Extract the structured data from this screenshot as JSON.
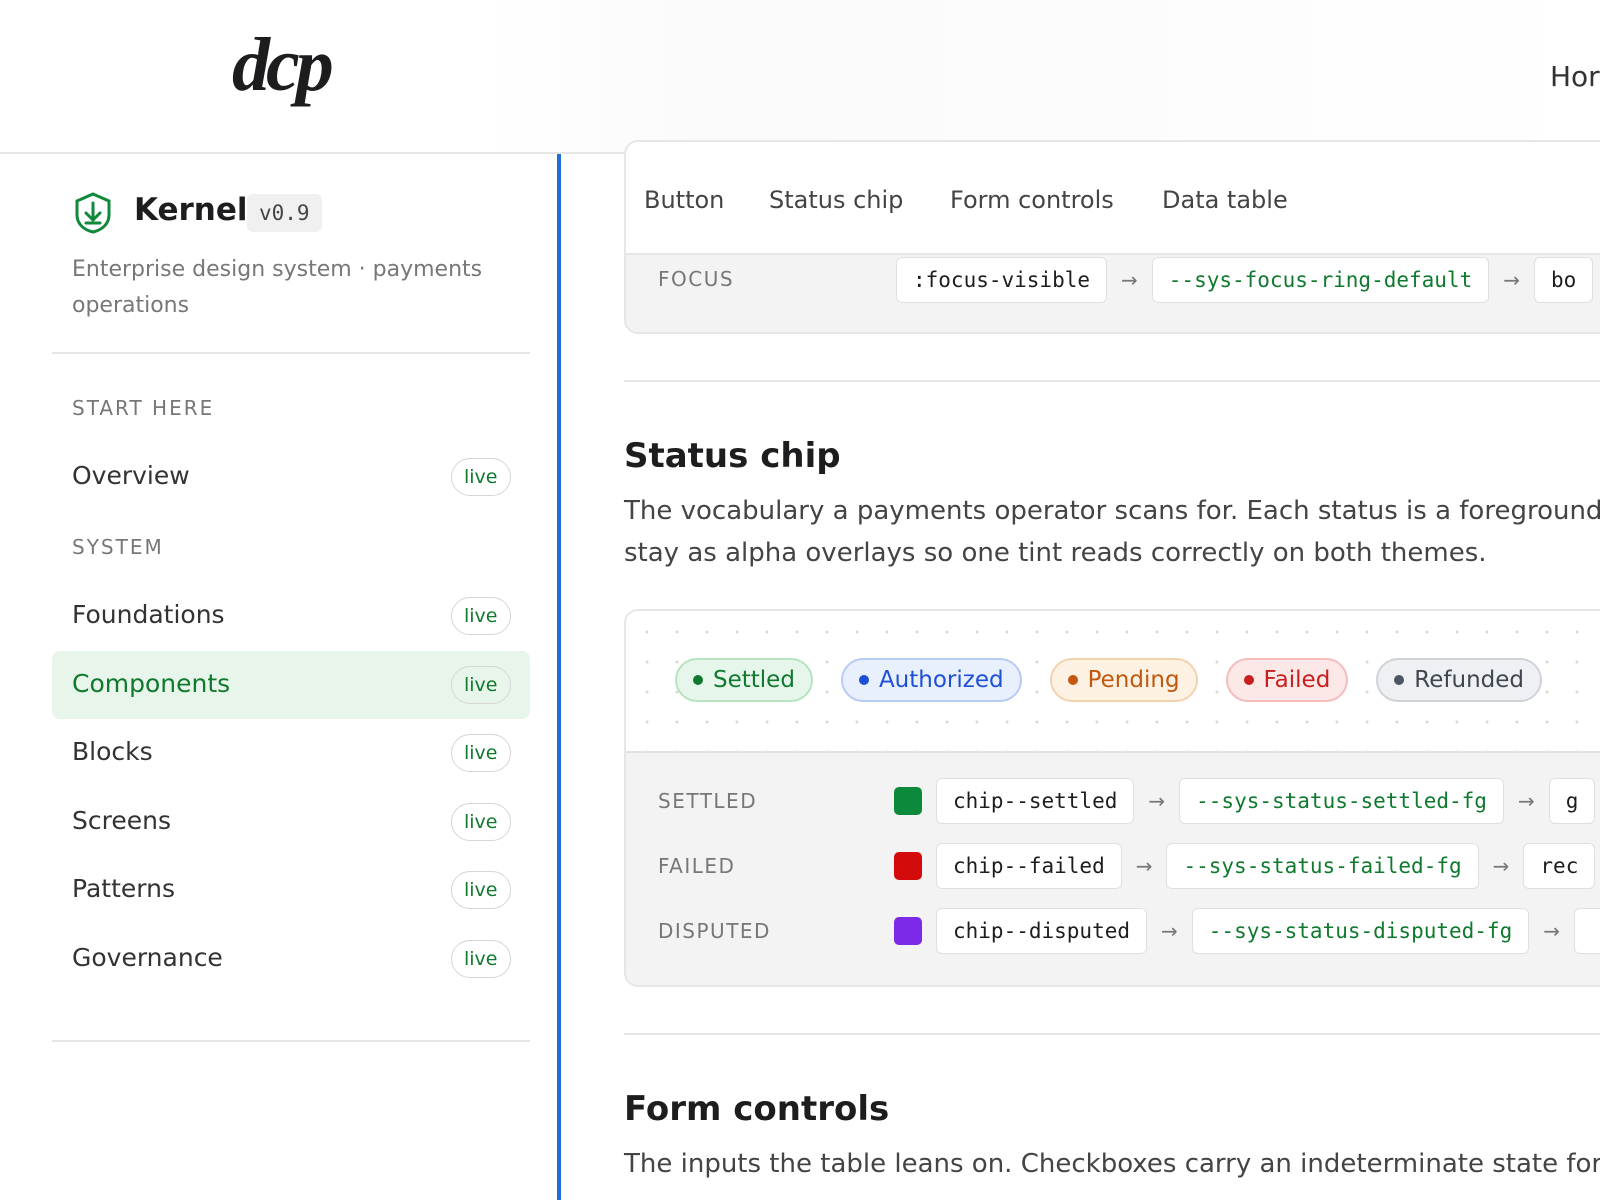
{
  "header": {
    "logo": "dcp",
    "nav": [
      "Hor"
    ]
  },
  "sidebar": {
    "title": "Kernel",
    "version": "v0.9",
    "subtitle": "Enterprise design system · payments operations",
    "groups": [
      {
        "label": "START HERE",
        "items": [
          {
            "label": "Overview",
            "badge": "live"
          }
        ]
      },
      {
        "label": "SYSTEM",
        "items": [
          {
            "label": "Foundations",
            "badge": "live"
          },
          {
            "label": "Components",
            "badge": "live",
            "active": true
          },
          {
            "label": "Blocks",
            "badge": "live"
          },
          {
            "label": "Screens",
            "badge": "live"
          },
          {
            "label": "Patterns",
            "badge": "live"
          },
          {
            "label": "Governance",
            "badge": "live"
          }
        ]
      }
    ]
  },
  "main": {
    "tabs": [
      "Button",
      "Status chip",
      "Form controls",
      "Data table"
    ],
    "focus_row": {
      "label": "FOCUS",
      "selector": ":focus-visible",
      "token": "--sys-focus-ring-default",
      "value": "bo"
    },
    "sections": [
      {
        "title": "Status chip",
        "lines": [
          "The vocabulary a payments operator scans for. Each status is a foreground",
          "stay as alpha overlays so one tint reads correctly on both themes."
        ],
        "chips": [
          "Settled",
          "Authorized",
          "Pending",
          "Failed",
          "Refunded"
        ],
        "rows": [
          {
            "label": "SETTLED",
            "color": "#0a8a3a",
            "class": "chip--settled",
            "token": "--sys-status-settled-fg",
            "value": "g"
          },
          {
            "label": "FAILED",
            "color": "#d40b0b",
            "class": "chip--failed",
            "token": "--sys-status-failed-fg",
            "value": "rec"
          },
          {
            "label": "DISPUTED",
            "color": "#7c2ae8",
            "class": "chip--disputed",
            "token": "--sys-status-disputed-fg",
            "value": ""
          }
        ]
      },
      {
        "title": "Form controls",
        "lines": [
          "The inputs the table leans on. Checkboxes carry an indeterminate state for"
        ]
      }
    ]
  }
}
